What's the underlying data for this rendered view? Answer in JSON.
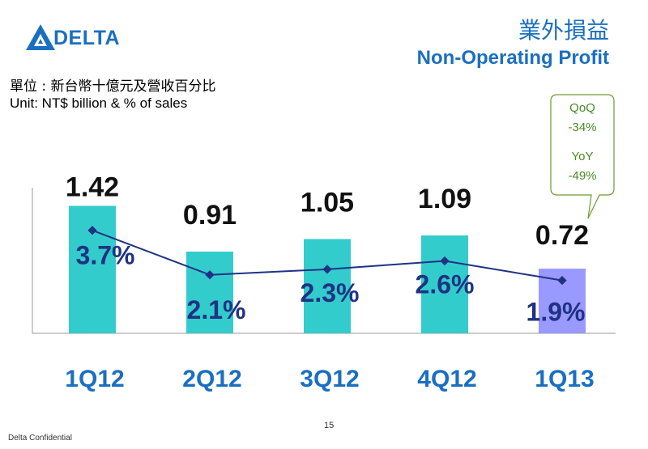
{
  "header": {
    "logo_text": "DELTA",
    "title_zh": "業外損益",
    "title_en": "Non-Operating Profit",
    "unit_zh": "單位 : 新台幣十億元及營收百分比",
    "unit_en": "Unit: NT$ billion & % of sales"
  },
  "callout": {
    "qoq_label": "QoQ",
    "qoq_value": "-34%",
    "yoy_label": "YoY",
    "yoy_value": "-49%"
  },
  "footer": {
    "confidential": "Delta Confidential",
    "page": "15"
  },
  "colors": {
    "bar": "#33cccc",
    "bar_highlight": "#9999ff",
    "line": "#1f3284",
    "label": "#1f3284",
    "category": "#1a6fc1",
    "brand": "#1a6fc1",
    "callout_border": "#6e9a2e"
  },
  "chart_data": {
    "type": "bar",
    "title": "Non-Operating Profit",
    "categories": [
      "1Q12",
      "2Q12",
      "3Q12",
      "4Q12",
      "1Q13"
    ],
    "series": [
      {
        "type": "bar",
        "values": [
          1.42,
          0.91,
          1.05,
          1.09,
          0.72
        ],
        "labels": [
          "1.42",
          "0.91",
          "1.05",
          "1.09",
          "0.72"
        ]
      },
      {
        "type": "line",
        "values": [
          3.7,
          2.1,
          2.3,
          2.6,
          1.9
        ],
        "labels": [
          "3.7%",
          "2.1%",
          "2.3%",
          "2.6%",
          "1.9%"
        ]
      }
    ],
    "highlight_index": 4,
    "ylim": [
      0,
      1.55
    ],
    "y2lim": [
      0,
      5.0
    ],
    "grid": false,
    "legend": "none"
  }
}
